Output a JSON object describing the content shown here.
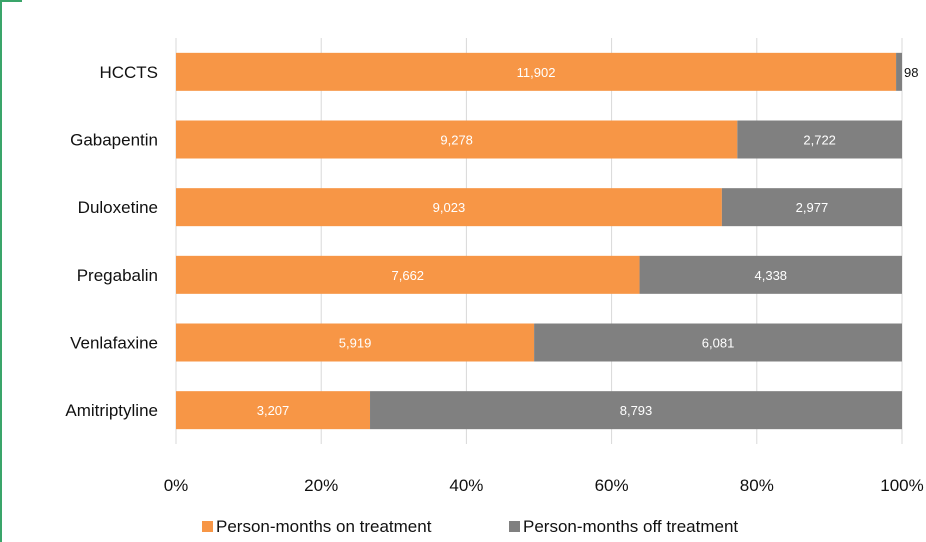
{
  "chart_data": {
    "type": "bar",
    "orientation": "horizontal",
    "stacked": "percent",
    "categories": [
      "HCCTS",
      "Gabapentin",
      "Duloxetine",
      "Pregabalin",
      "Venlafaxine",
      "Amitriptyline"
    ],
    "series": [
      {
        "name": "Person-months on treatment",
        "color": "#f79646",
        "values": [
          11902,
          9278,
          9023,
          7662,
          5919,
          3207
        ],
        "labels": [
          "11,902",
          "9,278",
          "9,023",
          "7,662",
          "5,919",
          "3,207"
        ]
      },
      {
        "name": "Person-months off treatment",
        "color": "#808080",
        "values": [
          98,
          2722,
          2977,
          4338,
          6081,
          8793
        ],
        "labels": [
          "98",
          "2,722",
          "2,977",
          "4,338",
          "6,081",
          "8,793"
        ]
      }
    ],
    "xticks": [
      "0%",
      "20%",
      "40%",
      "60%",
      "80%",
      "100%"
    ],
    "xlim": [
      0,
      100
    ],
    "grid": true,
    "legend": "bottom",
    "title": "",
    "xlabel": "",
    "ylabel": ""
  }
}
